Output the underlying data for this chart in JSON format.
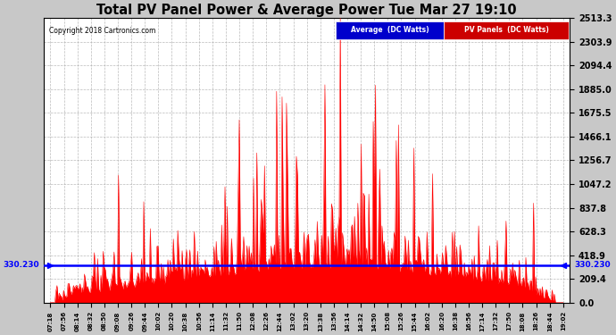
{
  "title": "Total PV Panel Power & Average Power Tue Mar 27 19:10",
  "copyright": "Copyright 2018 Cartronics.com",
  "avg_value": 330.23,
  "avg_label": "330.230",
  "y_ticks": [
    0.0,
    209.4,
    418.9,
    628.3,
    837.8,
    1047.2,
    1256.7,
    1466.1,
    1675.5,
    1885.0,
    2094.4,
    2303.9,
    2513.3
  ],
  "x_tick_labels": [
    "07:18",
    "07:56",
    "08:14",
    "08:32",
    "08:50",
    "09:08",
    "09:26",
    "09:44",
    "10:02",
    "10:20",
    "10:38",
    "10:56",
    "11:14",
    "11:32",
    "11:50",
    "12:08",
    "12:26",
    "12:44",
    "13:02",
    "13:20",
    "13:38",
    "13:56",
    "14:14",
    "14:32",
    "14:50",
    "15:08",
    "15:26",
    "15:44",
    "16:02",
    "16:20",
    "16:38",
    "16:56",
    "17:14",
    "17:32",
    "17:50",
    "18:08",
    "18:26",
    "18:44",
    "19:02"
  ],
  "fill_color_pv": "#ff0000",
  "line_color_avg": "#0000ff",
  "legend_avg_bg": "#0000cc",
  "legend_pv_bg": "#cc0000",
  "legend_avg_text": "Average  (DC Watts)",
  "legend_pv_text": "PV Panels  (DC Watts)",
  "fig_bg": "#c8c8c8",
  "plot_bg": "#ffffff",
  "grid_color": "#aaaaaa"
}
